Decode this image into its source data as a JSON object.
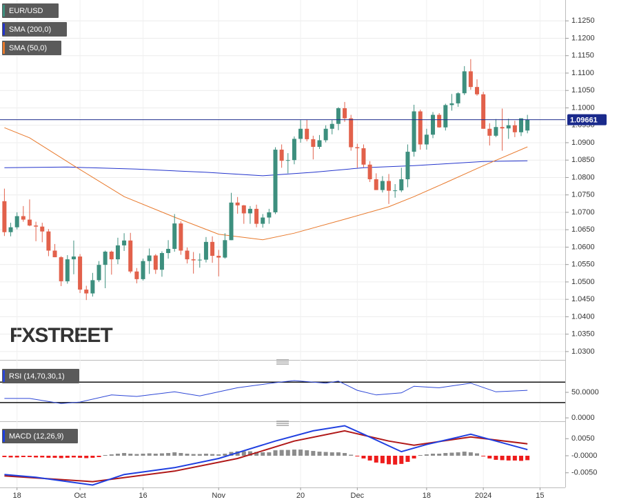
{
  "chart_data": [
    {
      "type": "candlestick",
      "name": "EUR/USD",
      "watermark": "FXSTREET",
      "colors": {
        "up": "#3d8f7e",
        "down": "#e2614b"
      },
      "xlim": [
        -0.7,
        89
      ],
      "ylim": [
        1.028,
        1.13
      ],
      "grid": true,
      "yticks": [
        {
          "value": 1.03,
          "label": "1.0300"
        },
        {
          "value": 1.035,
          "label": "1.0350"
        },
        {
          "value": 1.04,
          "label": "1.0400"
        },
        {
          "value": 1.045,
          "label": "1.0450"
        },
        {
          "value": 1.05,
          "label": "1.0500"
        },
        {
          "value": 1.055,
          "label": "1.0550"
        },
        {
          "value": 1.06,
          "label": "1.0600"
        },
        {
          "value": 1.065,
          "label": "1.0650"
        },
        {
          "value": 1.07,
          "label": "1.0700"
        },
        {
          "value": 1.075,
          "label": "1.0750"
        },
        {
          "value": 1.08,
          "label": "1.0800"
        },
        {
          "value": 1.085,
          "label": "1.0850"
        },
        {
          "value": 1.09,
          "label": "1.0900"
        },
        {
          "value": 1.095,
          "label": "1.0950"
        },
        {
          "value": 1.1,
          "label": "1.1000"
        },
        {
          "value": 1.105,
          "label": "1.1050"
        },
        {
          "value": 1.11,
          "label": "1.1100"
        },
        {
          "value": 1.115,
          "label": "1.1150"
        },
        {
          "value": 1.12,
          "label": "1.1200"
        },
        {
          "value": 1.125,
          "label": "1.1250"
        }
      ],
      "last_price": 1.09661,
      "last_price_color": "#1a2a8c",
      "ohlc": [
        [
          1.0732,
          1.0768,
          1.0632,
          1.0643
        ],
        [
          1.0643,
          1.067,
          1.0631,
          1.0657
        ],
        [
          1.0657,
          1.07,
          1.0651,
          1.0689
        ],
        [
          1.0689,
          1.0718,
          1.0673,
          1.0679
        ],
        [
          1.0679,
          1.0737,
          1.066,
          1.0662
        ],
        [
          1.0662,
          1.0673,
          1.0617,
          1.0659
        ],
        [
          1.0659,
          1.067,
          1.0614,
          1.0645
        ],
        [
          1.0645,
          1.0652,
          1.0574,
          1.059
        ],
        [
          1.059,
          1.0609,
          1.0571,
          1.0571
        ],
        [
          1.0571,
          1.0574,
          1.0488,
          1.0502
        ],
        [
          1.0502,
          1.0577,
          1.0495,
          1.0565
        ],
        [
          1.0565,
          1.0619,
          1.0522,
          1.0573
        ],
        [
          1.0573,
          1.058,
          1.0468,
          1.0478
        ],
        [
          1.0478,
          1.0489,
          1.0448,
          1.0467
        ],
        [
          1.0467,
          1.0526,
          1.0458,
          1.0505
        ],
        [
          1.0505,
          1.056,
          1.05,
          1.0549
        ],
        [
          1.0549,
          1.059,
          1.0482,
          1.0587
        ],
        [
          1.0587,
          1.059,
          1.0521,
          1.0565
        ],
        [
          1.0565,
          1.0627,
          1.0551,
          1.0605
        ],
        [
          1.0605,
          1.064,
          1.0589,
          1.0619
        ],
        [
          1.0619,
          1.0641,
          1.0525,
          1.053
        ],
        [
          1.053,
          1.054,
          1.0496,
          1.0508
        ],
        [
          1.0508,
          1.0567,
          1.0504,
          1.056
        ],
        [
          1.056,
          1.0596,
          1.0523,
          1.0576
        ],
        [
          1.0576,
          1.058,
          1.0523,
          1.0535
        ],
        [
          1.0535,
          1.0588,
          1.0515,
          1.0583
        ],
        [
          1.0583,
          1.062,
          1.0567,
          1.0595
        ],
        [
          1.0595,
          1.0695,
          1.0587,
          1.0668
        ],
        [
          1.0668,
          1.0674,
          1.0578,
          1.059
        ],
        [
          1.059,
          1.0599,
          1.0553,
          1.0565
        ],
        [
          1.0565,
          1.0586,
          1.0524,
          1.0562
        ],
        [
          1.0562,
          1.0582,
          1.0541,
          1.0564
        ],
        [
          1.0564,
          1.0629,
          1.0556,
          1.0615
        ],
        [
          1.0615,
          1.0631,
          1.0555,
          1.0575
        ],
        [
          1.0575,
          1.0592,
          1.0516,
          1.057
        ],
        [
          1.057,
          1.064,
          1.0567,
          1.062
        ],
        [
          1.062,
          1.0756,
          1.062,
          1.0728
        ],
        [
          1.0728,
          1.0744,
          1.0696,
          1.072
        ],
        [
          1.072,
          1.0721,
          1.0667,
          1.0697
        ],
        [
          1.0697,
          1.0718,
          1.0667,
          1.071
        ],
        [
          1.071,
          1.0722,
          1.0657,
          1.0667
        ],
        [
          1.0667,
          1.0695,
          1.0656,
          1.0685
        ],
        [
          1.0685,
          1.071,
          1.0667,
          1.07
        ],
        [
          1.07,
          1.0887,
          1.0695,
          1.088
        ],
        [
          1.088,
          1.0895,
          1.0828,
          1.0848
        ],
        [
          1.0848,
          1.087,
          1.0812,
          1.085
        ],
        [
          1.085,
          1.0918,
          1.0838,
          1.0911
        ],
        [
          1.0911,
          1.0965,
          1.09,
          1.094
        ],
        [
          1.094,
          1.0966,
          1.0904,
          1.091
        ],
        [
          1.091,
          1.092,
          1.0852,
          1.0888
        ],
        [
          1.0888,
          1.0922,
          1.0882,
          1.0907
        ],
        [
          1.0907,
          1.095,
          1.0901,
          1.094
        ],
        [
          1.094,
          1.0965,
          1.0924,
          1.0954
        ],
        [
          1.0954,
          1.1002,
          1.0936,
          1.0999
        ],
        [
          1.0999,
          1.1017,
          1.096,
          1.097
        ],
        [
          1.097,
          1.098,
          1.0877,
          1.0887
        ],
        [
          1.0887,
          1.0897,
          1.0828,
          1.0884
        ],
        [
          1.0884,
          1.0895,
          1.0829,
          1.0837
        ],
        [
          1.0837,
          1.0847,
          1.0787,
          1.0795
        ],
        [
          1.0795,
          1.0812,
          1.0764,
          1.0764
        ],
        [
          1.0764,
          1.0804,
          1.0757,
          1.079
        ],
        [
          1.079,
          1.081,
          1.0724,
          1.0762
        ],
        [
          1.0762,
          1.0781,
          1.0742,
          1.0763
        ],
        [
          1.0763,
          1.0828,
          1.0758,
          1.0795
        ],
        [
          1.0795,
          1.0895,
          1.0772,
          1.0874
        ],
        [
          1.0874,
          1.1009,
          1.086,
          1.099
        ],
        [
          1.099,
          1.0995,
          1.088,
          1.0895
        ],
        [
          1.0895,
          1.094,
          1.088,
          1.0923
        ],
        [
          1.0923,
          1.0988,
          1.0913,
          1.098
        ],
        [
          1.098,
          1.0985,
          1.0943,
          1.0944
        ],
        [
          1.0944,
          1.1012,
          1.0935,
          1.1008
        ],
        [
          1.1008,
          1.104,
          1.0992,
          1.1013
        ],
        [
          1.1013,
          1.1045,
          1.1003,
          1.1042
        ],
        [
          1.1042,
          1.112,
          1.1037,
          1.1105
        ],
        [
          1.1105,
          1.114,
          1.1052,
          1.106
        ],
        [
          1.106,
          1.1082,
          1.1035,
          1.1039
        ],
        [
          1.1039,
          1.1046,
          1.094,
          1.094
        ],
        [
          1.094,
          1.0956,
          1.0892,
          1.092
        ],
        [
          1.092,
          1.0968,
          1.0916,
          1.0945
        ],
        [
          1.0945,
          1.0998,
          1.0877,
          1.0941
        ],
        [
          1.0941,
          1.0969,
          1.0911,
          1.095
        ],
        [
          1.095,
          1.0963,
          1.0916,
          1.093
        ],
        [
          1.093,
          1.097,
          1.0919,
          1.097
        ],
        [
          1.0935,
          1.098,
          1.0927,
          1.0966
        ]
      ],
      "overlays": [
        {
          "name": "SMA (200,0)",
          "color": "#2233cc",
          "x": [
            0,
            10,
            21,
            32,
            41,
            49,
            57,
            65,
            76,
            83
          ],
          "values": [
            1.0828,
            1.083,
            1.0824,
            1.0815,
            1.0805,
            1.0815,
            1.0828,
            1.0834,
            1.0846,
            1.0848
          ]
        },
        {
          "name": "SMA (50,0)",
          "color": "#e8782a",
          "x": [
            0,
            4,
            11,
            19,
            27,
            34,
            41,
            46,
            54,
            61,
            65,
            70,
            76,
            83
          ],
          "values": [
            1.0943,
            1.0914,
            1.0834,
            1.0745,
            1.0686,
            1.0637,
            1.0621,
            1.064,
            1.068,
            1.0716,
            1.0745,
            1.0785,
            1.0834,
            1.0888
          ]
        }
      ]
    },
    {
      "type": "line",
      "xlim": [
        -0.7,
        89
      ],
      "ylim": [
        -8,
        96
      ],
      "levels": [
        70,
        30
      ],
      "yticks": [
        {
          "value": 50,
          "label": "50.0000"
        },
        {
          "value": 0,
          "label": "0.0000"
        }
      ],
      "series": [
        {
          "name": "RSI (14,70,30,1)",
          "color": "#2b45d6",
          "x": [
            0,
            4,
            9,
            12,
            17,
            21,
            27,
            31,
            37,
            43,
            46,
            51,
            53,
            56,
            59,
            63,
            65,
            69,
            74,
            78,
            83
          ],
          "values": [
            38,
            38,
            28,
            31,
            45,
            42,
            51,
            43,
            59,
            69,
            73,
            68,
            72,
            54,
            45,
            49,
            62,
            59,
            68,
            51,
            54
          ]
        }
      ]
    },
    {
      "type": "macd",
      "title": "MACD (12,26,9)",
      "xlim": [
        -0.7,
        89
      ],
      "ylim": [
        -0.0093,
        0.0095
      ],
      "yticks": [
        {
          "value": 0.005,
          "label": "0.0050"
        },
        {
          "value": 0,
          "label": "-0.0000"
        },
        {
          "value": -0.005,
          "label": "-0.0050"
        }
      ],
      "xticks": [
        {
          "value": 2,
          "label": "18"
        },
        {
          "value": 12,
          "label": "Oct"
        },
        {
          "value": 22,
          "label": "16"
        },
        {
          "value": 34,
          "label": "Nov"
        },
        {
          "value": 47,
          "label": "20"
        },
        {
          "value": 56,
          "label": "Dec"
        },
        {
          "value": 67,
          "label": "18"
        },
        {
          "value": 76,
          "label": "2024"
        },
        {
          "value": 85,
          "label": "15"
        }
      ],
      "histogram": {
        "colors": {
          "positive": "#8c8c8c",
          "negative": "#ee1c1c"
        },
        "values": [
          -0.0004,
          -0.0005,
          -0.0005,
          -0.0004,
          -0.0004,
          -0.0005,
          -0.0005,
          -0.0006,
          -0.0006,
          -0.0007,
          -0.0006,
          -0.0005,
          -0.0006,
          -0.0007,
          -0.0006,
          -0.0004,
          0.0002,
          0.0004,
          0.0006,
          0.0008,
          0.0006,
          0.0005,
          0.0006,
          0.0007,
          0.0006,
          0.0007,
          0.0008,
          0.001,
          0.0008,
          0.0006,
          0.0005,
          0.0005,
          0.0006,
          0.0005,
          0.0004,
          0.0006,
          0.0011,
          0.0013,
          0.0013,
          0.0013,
          0.0011,
          0.001,
          0.001,
          0.0016,
          0.0017,
          0.0017,
          0.0018,
          0.0018,
          0.0016,
          0.0014,
          0.0012,
          0.0011,
          0.001,
          0.001,
          0.0008,
          0.0003,
          -0.0002,
          -0.0008,
          -0.0014,
          -0.002,
          -0.0022,
          -0.0025,
          -0.0026,
          -0.0024,
          -0.0018,
          -0.0008,
          0.0002,
          0.0004,
          0.0006,
          0.0006,
          0.0008,
          0.0009,
          0.001,
          0.0012,
          0.001,
          0.0007,
          -0.0002,
          -0.0008,
          -0.0012,
          -0.0013,
          -0.0014,
          -0.0014,
          -0.0015,
          -0.0013
        ]
      },
      "macd": {
        "color": "#1f3fe0",
        "x": [
          0,
          5,
          14,
          19,
          27,
          34,
          43,
          49,
          54,
          57,
          63,
          67,
          74,
          78,
          83
        ],
        "values": [
          -0.0055,
          -0.0063,
          -0.0086,
          -0.0055,
          -0.0035,
          -0.0008,
          0.0043,
          0.0073,
          0.0088,
          0.0063,
          0.0012,
          0.0033,
          0.0063,
          0.0043,
          0.0018
        ]
      },
      "signal": {
        "color": "#b01818",
        "x": [
          0,
          14,
          27,
          37,
          46,
          54,
          61,
          65,
          74,
          83
        ],
        "values": [
          -0.0059,
          -0.0076,
          -0.0045,
          -0.0008,
          0.0043,
          0.0073,
          0.0043,
          0.0031,
          0.0055,
          0.0035
        ]
      }
    }
  ]
}
